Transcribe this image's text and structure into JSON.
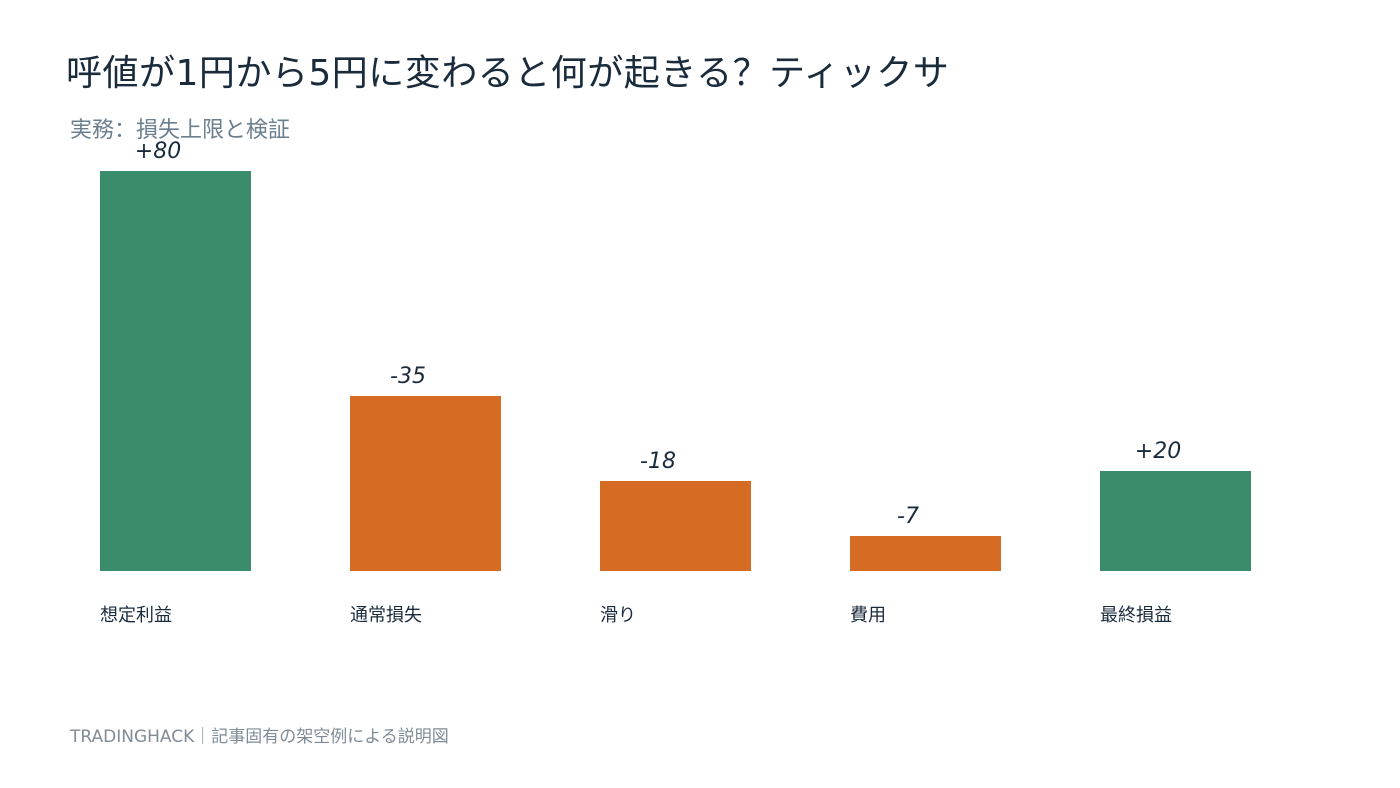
{
  "title": "呼値が1円から5円に変わると何が起きる？ティックサ",
  "subtitle": "実務：損失上限と検証",
  "footer": "TRADINGHACK｜記事固有の架空例による説明図",
  "colors": {
    "positive": "#3a8c6a",
    "negative": "#d66b24",
    "label_text": "#1a2b3c"
  },
  "chart_data": {
    "type": "bar",
    "categories": [
      "想定利益",
      "通常損失",
      "滑り",
      "費用",
      "最終損益"
    ],
    "values": [
      80,
      -35,
      -18,
      -7,
      20
    ],
    "value_labels": [
      "+80",
      "-35",
      "-18",
      "-7",
      "+20"
    ],
    "title": "呼値が1円から5円に変わると何が起きる？ティックサ",
    "xlabel": "",
    "ylabel": "",
    "grid": false
  }
}
